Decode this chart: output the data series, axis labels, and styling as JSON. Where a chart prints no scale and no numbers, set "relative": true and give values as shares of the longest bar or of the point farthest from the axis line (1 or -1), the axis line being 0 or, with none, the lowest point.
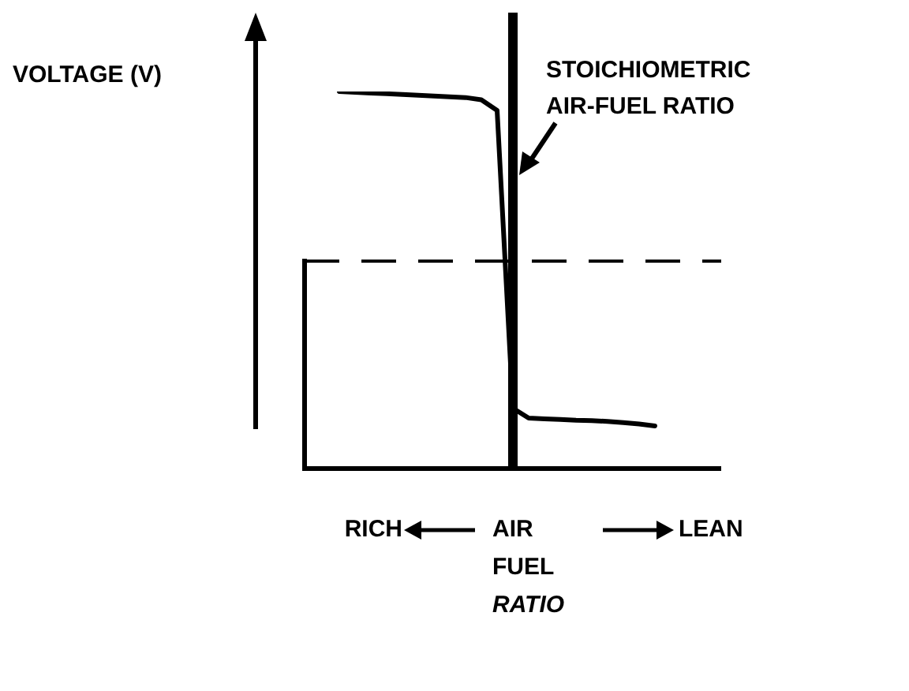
{
  "chart_data": {
    "type": "line",
    "relative": true,
    "xlabel": "AIR FUEL RATIO",
    "legend": false,
    "marker": "none",
    "line_style": "solid",
    "categories": [
      null,
      null,
      null,
      null,
      null,
      null,
      null,
      null,
      null,
      null,
      null,
      null,
      null,
      null,
      null,
      null,
      null,
      null,
      null,
      null,
      null,
      null,
      null,
      null,
      null,
      null,
      null
    ],
    "series": [
      {
        "color": "#000000",
        "values": [
          null,
          null,
          1.0,
          0.998,
          0.996,
          0.994,
          0.992,
          0.99,
          0.988,
          0.986,
          0.984,
          0.978,
          0.95,
          0.16,
          0.134,
          0.132,
          0.13,
          0.128,
          0.127,
          0.125,
          0.122,
          0.118,
          0.113,
          null,
          null,
          null,
          null
        ]
      }
    ],
    "ref_lines": [
      {
        "axis": "y",
        "value": 0.55,
        "line_style": "dashed",
        "color": "#000000"
      },
      {
        "axis": "x",
        "line_style": "solid",
        "color": "#000000"
      }
    ],
    "annotations": [
      "STOICHIOMETRIC AIR-FUEL RATIO",
      "RICH",
      "LEAN",
      "VOLTAGE (V)"
    ]
  }
}
